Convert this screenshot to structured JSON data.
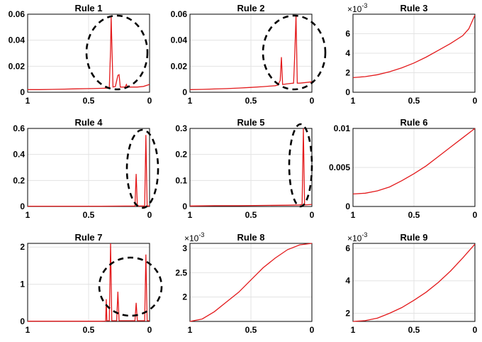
{
  "chart_data": [
    {
      "type": "line",
      "title": "Rule 1",
      "x": [
        1,
        0.9,
        0.8,
        0.7,
        0.6,
        0.5,
        0.4,
        0.33,
        0.32,
        0.315,
        0.3,
        0.28,
        0.26,
        0.25,
        0.24,
        0.2,
        0.19,
        0.18,
        0.1,
        0.05,
        0
      ],
      "y": [
        0.002,
        0.002,
        0.0022,
        0.0024,
        0.0026,
        0.0028,
        0.003,
        0.0032,
        0.033,
        0.058,
        0.004,
        0.0045,
        0.013,
        0.0135,
        0.004,
        0.004,
        0.006,
        0.004,
        0.004,
        0.0045,
        0.006
      ],
      "xlim": [
        1,
        0
      ],
      "ylim": [
        0,
        0.06
      ],
      "xticks": [
        "1",
        "0.5",
        "0"
      ],
      "yticks": [
        "0",
        "0.02",
        "0.04",
        "0.06"
      ],
      "grid": true,
      "annotation": "dashed circle around peaks"
    },
    {
      "type": "line",
      "title": "Rule 2",
      "x": [
        1,
        0.9,
        0.8,
        0.7,
        0.6,
        0.5,
        0.4,
        0.3,
        0.28,
        0.26,
        0.25,
        0.24,
        0.2,
        0.15,
        0.14,
        0.13,
        0.12,
        0.1,
        0.05,
        0
      ],
      "y": [
        0.002,
        0.0022,
        0.0025,
        0.0028,
        0.0032,
        0.0037,
        0.0043,
        0.005,
        0.0055,
        0.009,
        0.027,
        0.006,
        0.0065,
        0.007,
        0.03,
        0.059,
        0.007,
        0.007,
        0.0075,
        0.008
      ],
      "xlim": [
        1,
        0
      ],
      "ylim": [
        0,
        0.06
      ],
      "xticks": [
        "1",
        "0.5",
        "0"
      ],
      "yticks": [
        "0",
        "0.02",
        "0.04",
        "0.06"
      ],
      "grid": true,
      "annotation": "dashed circle around peaks"
    },
    {
      "type": "line",
      "title": "Rule 3",
      "x": [
        1,
        0.9,
        0.8,
        0.7,
        0.6,
        0.5,
        0.4,
        0.3,
        0.2,
        0.1,
        0.05,
        0
      ],
      "y": [
        1.5,
        1.6,
        1.8,
        2.1,
        2.5,
        3.0,
        3.6,
        4.3,
        5.0,
        5.8,
        6.5,
        7.9
      ],
      "xlim": [
        1,
        0
      ],
      "ylim": [
        0,
        8
      ],
      "exponent": "×10",
      "exponent_power": "-3",
      "xticks": [
        "1",
        "0.5",
        "0"
      ],
      "yticks": [
        "0",
        "2",
        "4",
        "6"
      ],
      "grid": true
    },
    {
      "type": "line",
      "title": "Rule 4",
      "x": [
        1,
        0.8,
        0.6,
        0.4,
        0.2,
        0.12,
        0.11,
        0.1,
        0.08,
        0.04,
        0.03,
        0.02,
        0
      ],
      "y": [
        0.002,
        0.002,
        0.002,
        0.002,
        0.003,
        0.004,
        0.25,
        0.004,
        0.004,
        0.004,
        0.55,
        0.004,
        0.004
      ],
      "xlim": [
        1,
        0
      ],
      "ylim": [
        0,
        0.6
      ],
      "xticks": [
        "1",
        "0.5",
        "0"
      ],
      "yticks": [
        "0",
        "0.2",
        "0.4",
        "0.6"
      ],
      "grid": true,
      "annotation": "dashed ellipse around peaks"
    },
    {
      "type": "line",
      "title": "Rule 5",
      "x": [
        1,
        0.8,
        0.6,
        0.4,
        0.2,
        0.1,
        0.08,
        0.07,
        0.06,
        0
      ],
      "y": [
        0.002,
        0.003,
        0.003,
        0.004,
        0.005,
        0.006,
        0.008,
        0.3,
        0.006,
        0.008
      ],
      "xlim": [
        1,
        0
      ],
      "ylim": [
        0,
        0.3
      ],
      "xticks": [
        "1",
        "0.5",
        "0"
      ],
      "yticks": [
        "0",
        "0.1",
        "0.2",
        "0.3"
      ],
      "grid": true,
      "annotation": "dashed ellipse around peak"
    },
    {
      "type": "line",
      "title": "Rule 6",
      "x": [
        1,
        0.9,
        0.8,
        0.7,
        0.6,
        0.5,
        0.4,
        0.3,
        0.2,
        0.1,
        0
      ],
      "y": [
        0.0016,
        0.0017,
        0.002,
        0.0025,
        0.0033,
        0.0042,
        0.0052,
        0.0064,
        0.0076,
        0.0088,
        0.01
      ],
      "xlim": [
        1,
        0
      ],
      "ylim": [
        0,
        0.01
      ],
      "xticks": [
        "1",
        "0.5",
        "0"
      ],
      "yticks": [
        "0",
        "0.005",
        "0.01"
      ],
      "grid": true
    },
    {
      "type": "line",
      "title": "Rule 7",
      "x": [
        1,
        0.8,
        0.6,
        0.4,
        0.36,
        0.355,
        0.35,
        0.33,
        0.32,
        0.31,
        0.27,
        0.26,
        0.25,
        0.12,
        0.11,
        0.1,
        0.04,
        0.03,
        0.02,
        0
      ],
      "y": [
        0.005,
        0.005,
        0.005,
        0.006,
        0.01,
        0.6,
        0.02,
        0.02,
        2.1,
        0.02,
        0.02,
        0.8,
        0.02,
        0.02,
        0.5,
        0.02,
        0.02,
        1.8,
        0.02,
        0.02
      ],
      "xlim": [
        1,
        0
      ],
      "ylim": [
        0,
        2.1
      ],
      "xticks": [
        "1",
        "0.5",
        "0"
      ],
      "yticks": [
        "0",
        "1",
        "2"
      ],
      "grid": true,
      "annotation": "dashed circle around peaks"
    },
    {
      "type": "line",
      "title": "Rule 8",
      "x": [
        1,
        0.9,
        0.8,
        0.7,
        0.6,
        0.5,
        0.4,
        0.3,
        0.2,
        0.1,
        0
      ],
      "y": [
        1.5,
        1.55,
        1.7,
        1.9,
        2.1,
        2.35,
        2.6,
        2.8,
        2.97,
        3.07,
        3.1
      ],
      "xlim": [
        1,
        0
      ],
      "ylim": [
        1.5,
        3.1
      ],
      "exponent": "×10",
      "exponent_power": "-3",
      "xticks": [
        "1",
        "0.5",
        "0"
      ],
      "yticks": [
        "2",
        "2.5",
        "3"
      ],
      "grid": true
    },
    {
      "type": "line",
      "title": "Rule 9",
      "x": [
        1,
        0.9,
        0.8,
        0.7,
        0.6,
        0.5,
        0.4,
        0.3,
        0.2,
        0.1,
        0
      ],
      "y": [
        1.5,
        1.55,
        1.7,
        2.0,
        2.35,
        2.8,
        3.3,
        3.9,
        4.6,
        5.4,
        6.25
      ],
      "xlim": [
        1,
        0
      ],
      "ylim": [
        1.5,
        6.3
      ],
      "exponent": "×10",
      "exponent_power": "-3",
      "xticks": [
        "1",
        "0.5",
        "0"
      ],
      "yticks": [
        "2",
        "4",
        "6"
      ],
      "grid": true
    }
  ],
  "colors": {
    "series": "#e31a1c",
    "axis": "#000000",
    "grid": "#e3e3e3"
  }
}
